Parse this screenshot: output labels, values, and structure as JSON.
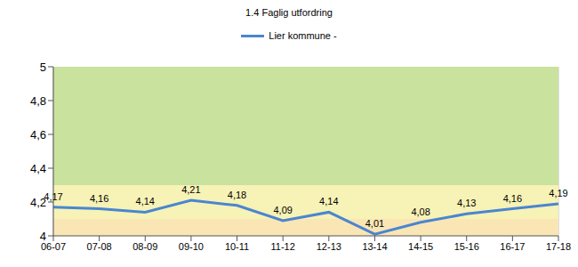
{
  "chart_data": {
    "type": "line",
    "title": "1.4 Faglig utfordring",
    "categories": [
      "06-07",
      "07-08",
      "08-09",
      "09-10",
      "10-11",
      "11-12",
      "12-13",
      "13-14",
      "14-15",
      "15-16",
      "16-17",
      "17-18"
    ],
    "series": [
      {
        "name": "Lier kommune -",
        "color": "#4a86d0",
        "values": [
          4.17,
          4.16,
          4.14,
          4.21,
          4.18,
          4.09,
          4.14,
          4.01,
          4.08,
          4.13,
          4.16,
          4.19
        ],
        "value_labels": [
          "4,17",
          "4,16",
          "4,14",
          "4,21",
          "4,18",
          "4,09",
          "4,14",
          "4,01",
          "4,08",
          "4,13",
          "4,16",
          "4,19"
        ],
        "marker": "none",
        "line_style": "solid"
      }
    ],
    "ylim": [
      4,
      5
    ],
    "yticks": [
      {
        "value": 4,
        "label": "4"
      },
      {
        "value": 4.2,
        "label": "4,2"
      },
      {
        "value": 4.4,
        "label": "4,4"
      },
      {
        "value": 4.6,
        "label": "4,6"
      },
      {
        "value": 4.8,
        "label": "4,8"
      },
      {
        "value": 5,
        "label": "5"
      }
    ],
    "bands": [
      {
        "from": 4.3,
        "to": 5,
        "color": "#c9e29d"
      },
      {
        "from": 4.1,
        "to": 4.3,
        "color": "#f7f2b6"
      },
      {
        "from": 4,
        "to": 4.1,
        "color": "#fae6b5"
      }
    ],
    "grid": true,
    "legend": "top",
    "data_labels": true
  }
}
